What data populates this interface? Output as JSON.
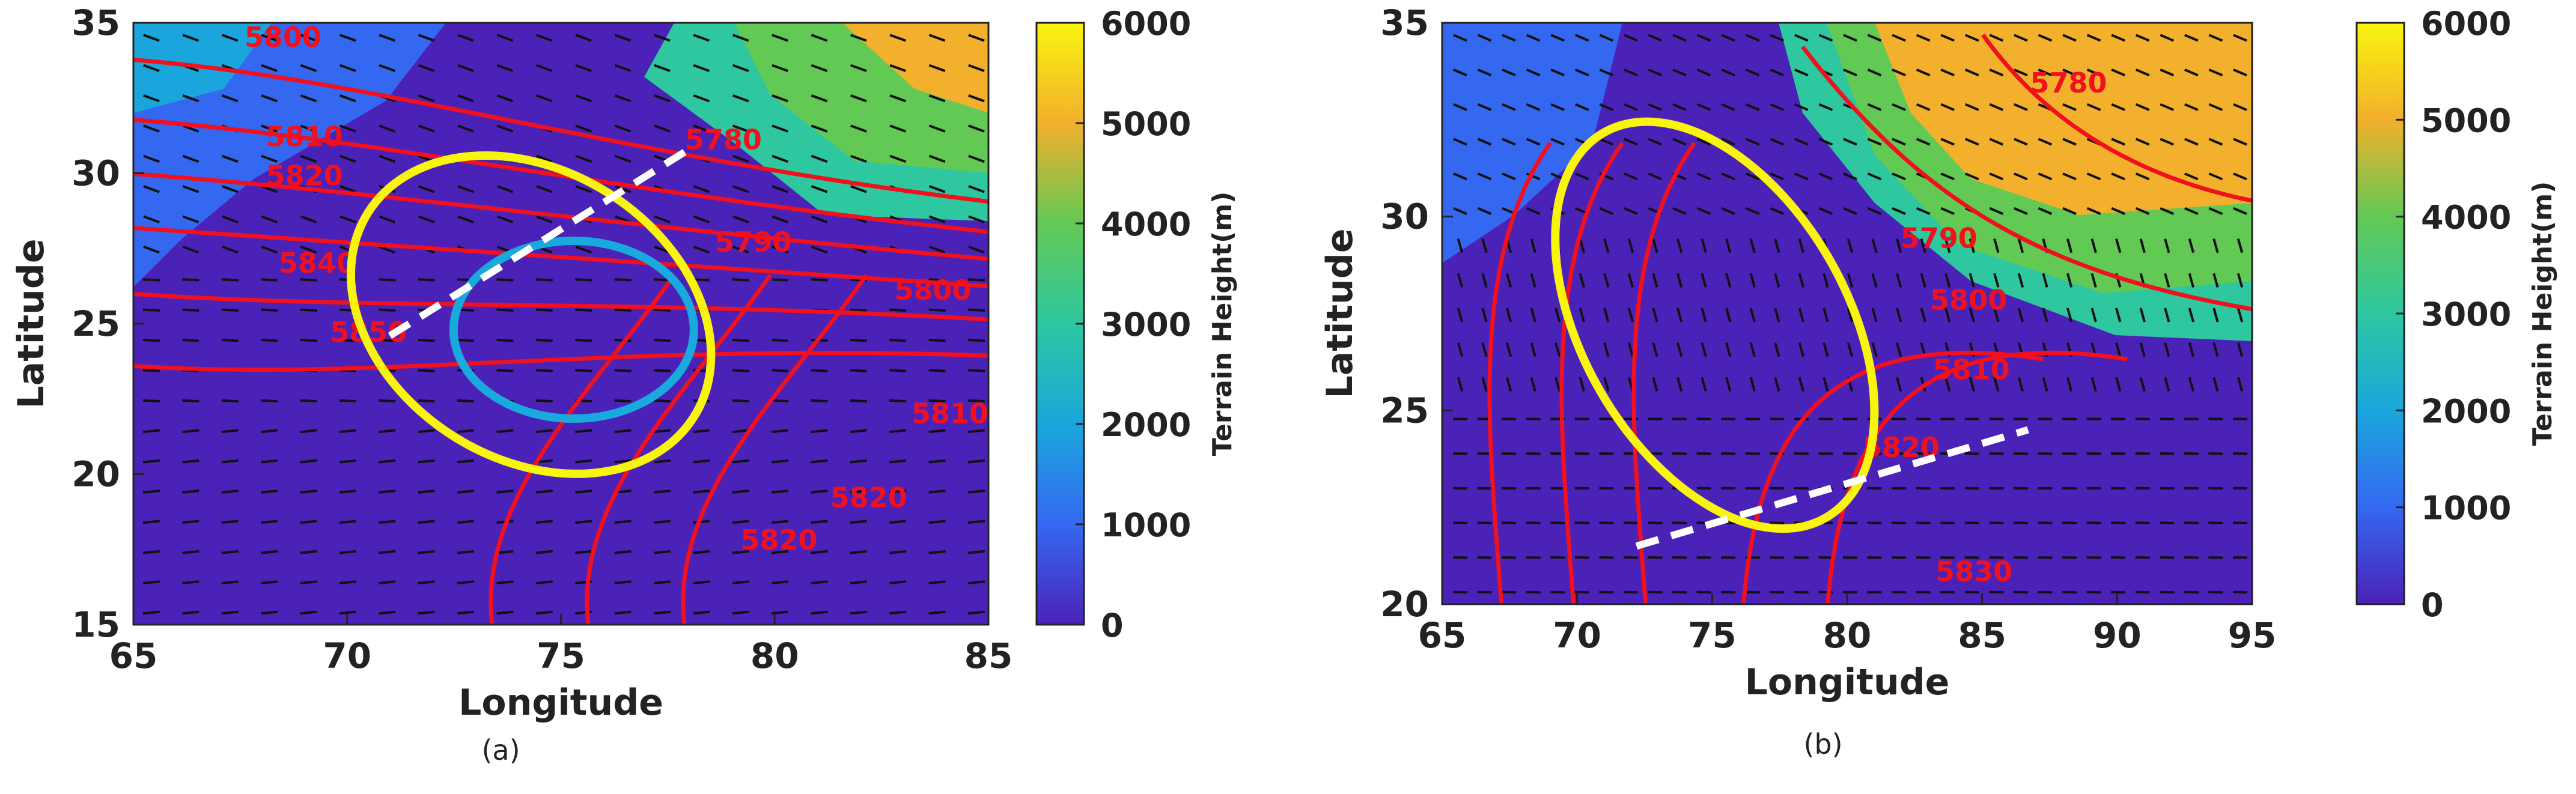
{
  "chart_data": [
    {
      "type": "contour-map",
      "panel_label": "(a)",
      "xlabel": "Longitude",
      "ylabel": "Latitude",
      "xlim": [
        65,
        85
      ],
      "ylim": [
        15,
        35
      ],
      "xticks": [
        65,
        70,
        75,
        80,
        85
      ],
      "yticks": [
        15,
        20,
        25,
        30,
        35
      ],
      "colorbar": {
        "label": "Terrain Height(m)",
        "ticks": [
          0,
          1000,
          2000,
          3000,
          4000,
          5000,
          6000
        ],
        "range": [
          0,
          6000
        ],
        "colors": [
          "#4b22b8",
          "#3568f0",
          "#1aa6dc",
          "#2ec7a0",
          "#63c955",
          "#f2b02c",
          "#f9f40f"
        ]
      },
      "contour_labels": [
        {
          "text": "5800",
          "lon": 68.5,
          "lat": 34.2
        },
        {
          "text": "5810",
          "lon": 69.0,
          "lat": 30.9
        },
        {
          "text": "5820",
          "lon": 69.0,
          "lat": 29.6
        },
        {
          "text": "5840",
          "lon": 69.3,
          "lat": 26.7
        },
        {
          "text": "5850",
          "lon": 70.5,
          "lat": 24.4
        },
        {
          "text": "5780",
          "lon": 78.8,
          "lat": 30.8
        },
        {
          "text": "5790",
          "lon": 79.5,
          "lat": 27.4
        },
        {
          "text": "5800",
          "lon": 83.7,
          "lat": 25.8
        },
        {
          "text": "5810",
          "lon": 84.1,
          "lat": 21.7
        },
        {
          "text": "5820",
          "lon": 82.2,
          "lat": 18.9
        },
        {
          "text": "5820",
          "lon": 80.1,
          "lat": 17.5
        }
      ],
      "annotations": [
        {
          "shape": "ellipse",
          "color": "#f9f40f",
          "center": [
            74.3,
            25.3
          ],
          "note": "yellow ellipse"
        },
        {
          "shape": "ellipse",
          "color": "#1aa9dc",
          "center": [
            75.3,
            24.8
          ],
          "note": "cyan ellipse"
        },
        {
          "shape": "dashed-line",
          "color": "#ffffff",
          "from": [
            71.0,
            24.6
          ],
          "to": [
            78.0,
            30.8
          ]
        }
      ]
    },
    {
      "type": "contour-map",
      "panel_label": "(b)",
      "xlabel": "Longitude",
      "ylabel": "Latitude",
      "xlim": [
        65,
        95
      ],
      "ylim": [
        20,
        35
      ],
      "xticks": [
        65,
        70,
        75,
        80,
        85,
        90,
        95
      ],
      "yticks": [
        20,
        25,
        30,
        35
      ],
      "colorbar": {
        "label": "Terrain Height(m)",
        "ticks": [
          0,
          1000,
          2000,
          3000,
          4000,
          5000,
          6000
        ],
        "range": [
          0,
          6000
        ],
        "colors": [
          "#4b22b8",
          "#3568f0",
          "#1aa6dc",
          "#2ec7a0",
          "#63c955",
          "#f2b02c",
          "#f9f40f"
        ]
      },
      "contour_labels": [
        {
          "text": "5780",
          "lon": 88.2,
          "lat": 33.2
        },
        {
          "text": "5790",
          "lon": 83.4,
          "lat": 29.2
        },
        {
          "text": "5800",
          "lon": 84.5,
          "lat": 27.6
        },
        {
          "text": "5810",
          "lon": 84.6,
          "lat": 25.8
        },
        {
          "text": "5820",
          "lon": 82.0,
          "lat": 23.8
        },
        {
          "text": "5830",
          "lon": 84.7,
          "lat": 20.6
        }
      ],
      "annotations": [
        {
          "shape": "ellipse",
          "color": "#f9f40f",
          "center": [
            75.1,
            27.2
          ],
          "note": "yellow ellipse"
        },
        {
          "shape": "dashed-line",
          "color": "#ffffff",
          "from": [
            72.2,
            21.5
          ],
          "to": [
            86.7,
            24.5
          ]
        }
      ]
    }
  ]
}
